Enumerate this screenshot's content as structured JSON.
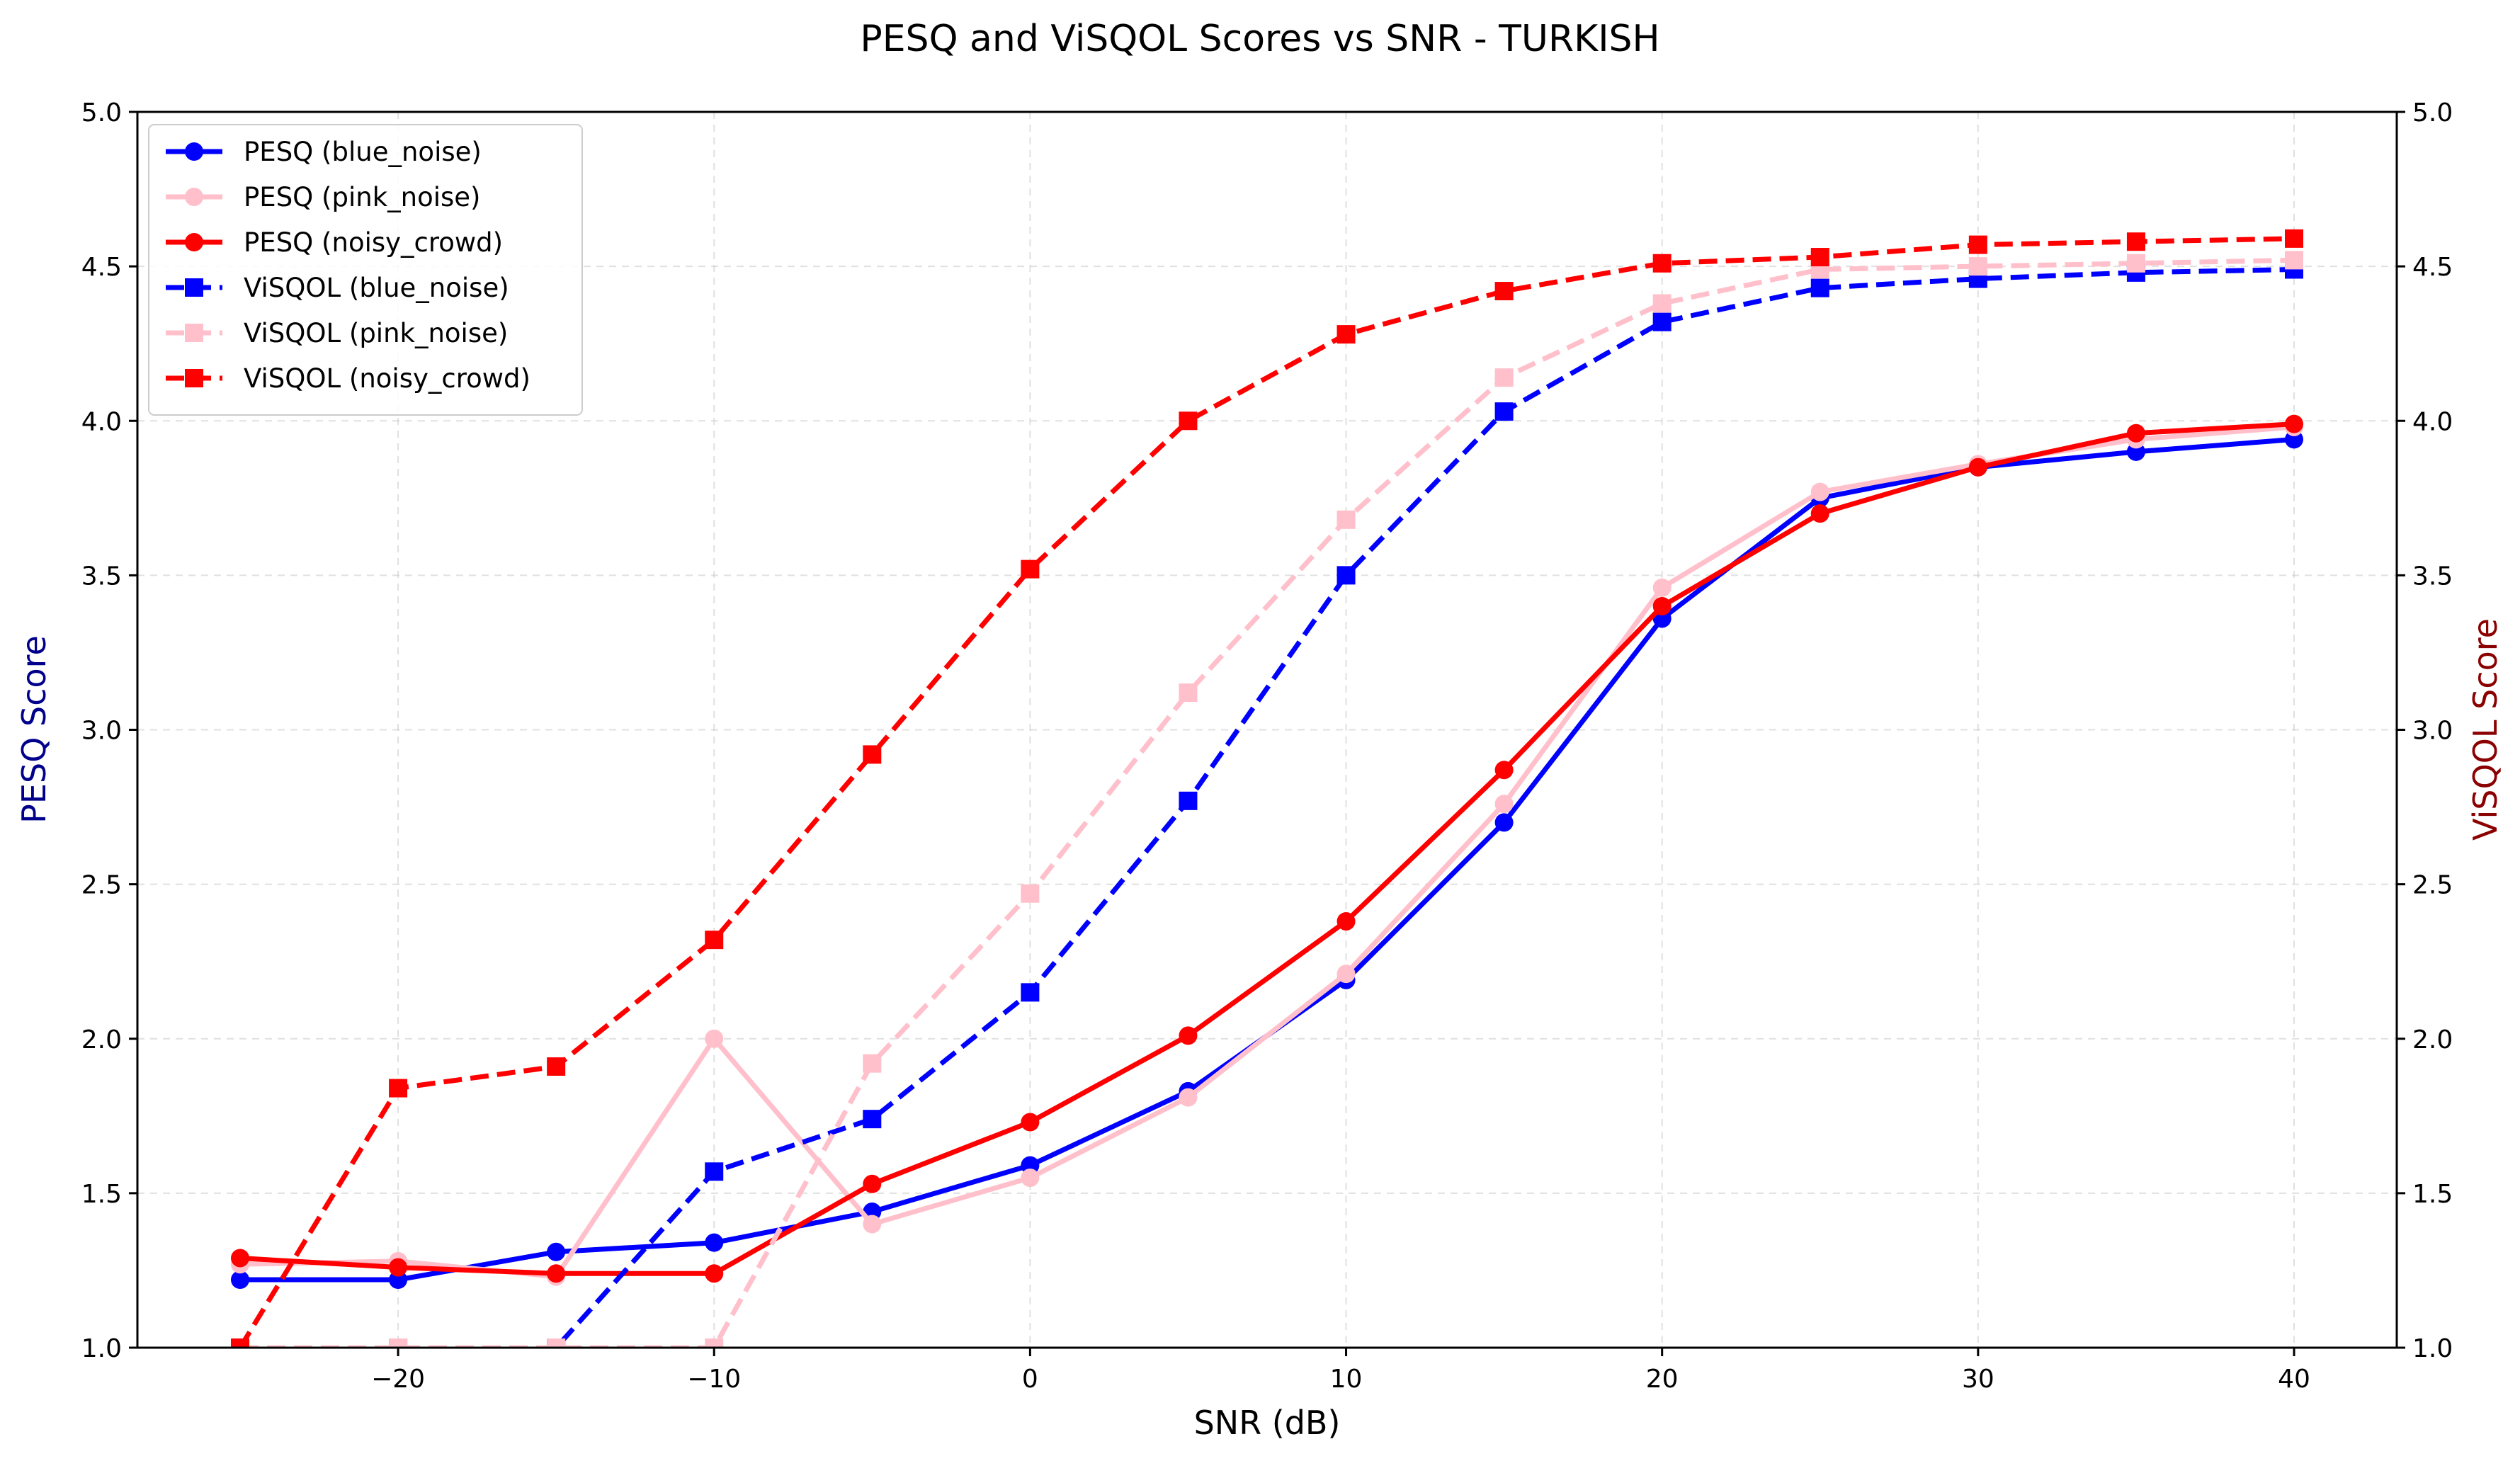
{
  "chart_data": {
    "type": "line",
    "title": "PESQ and ViSQOL Scores vs SNR - TURKISH",
    "xlabel": "SNR (dB)",
    "ylabel_left": "PESQ Score",
    "ylabel_right": "ViSQOL Score",
    "ylabel_left_color": "#00008b",
    "ylabel_right_color": "#8b0000",
    "xlim": [
      -28.25,
      43.25
    ],
    "ylim": [
      1.0,
      5.0
    ],
    "x_ticks": [
      -20,
      -10,
      0,
      10,
      20,
      30,
      40
    ],
    "x_tick_labels": [
      "−20",
      "−10",
      "0",
      "10",
      "20",
      "30",
      "40"
    ],
    "y_ticks": [
      1.0,
      1.5,
      2.0,
      2.5,
      3.0,
      3.5,
      4.0,
      4.5,
      5.0
    ],
    "y_tick_labels": [
      "1.0",
      "1.5",
      "2.0",
      "2.5",
      "3.0",
      "3.5",
      "4.0",
      "4.5",
      "5.0"
    ],
    "grid": true,
    "legend_position": "top-left",
    "x": [
      -25,
      -20,
      -15,
      -10,
      -5,
      0,
      5,
      10,
      15,
      20,
      25,
      30,
      35,
      40
    ],
    "series": [
      {
        "name": "PESQ (blue_noise)",
        "color": "#0000ff",
        "style": "solid",
        "marker": "circle",
        "values": [
          1.22,
          1.22,
          1.31,
          1.34,
          1.44,
          1.59,
          1.83,
          2.19,
          2.7,
          3.36,
          3.75,
          3.85,
          3.9,
          3.94
        ]
      },
      {
        "name": "PESQ (pink_noise)",
        "color": "#ffc0cb",
        "style": "solid",
        "marker": "circle",
        "values": [
          1.27,
          1.28,
          1.23,
          2.0,
          1.4,
          1.55,
          1.81,
          2.21,
          2.76,
          3.46,
          3.77,
          3.86,
          3.94,
          3.98
        ]
      },
      {
        "name": "PESQ (noisy_crowd)",
        "color": "#ff0000",
        "style": "solid",
        "marker": "circle",
        "values": [
          1.29,
          1.26,
          1.24,
          1.24,
          1.53,
          1.73,
          2.01,
          2.38,
          2.87,
          3.4,
          3.7,
          3.85,
          3.96,
          3.99
        ]
      },
      {
        "name": "ViSQOL (blue_noise)",
        "color": "#0000ff",
        "style": "dashed",
        "marker": "square",
        "values": [
          1.0,
          1.0,
          1.0,
          1.57,
          1.74,
          2.15,
          2.77,
          3.5,
          4.03,
          4.32,
          4.43,
          4.46,
          4.48,
          4.49
        ]
      },
      {
        "name": "ViSQOL (pink_noise)",
        "color": "#ffc0cb",
        "style": "dashed",
        "marker": "square",
        "values": [
          1.0,
          1.0,
          1.0,
          1.0,
          1.92,
          2.47,
          3.12,
          3.68,
          4.14,
          4.38,
          4.49,
          4.5,
          4.51,
          4.52
        ]
      },
      {
        "name": "ViSQOL (noisy_crowd)",
        "color": "#ff0000",
        "style": "dashed",
        "marker": "square",
        "values": [
          1.0,
          1.84,
          1.91,
          2.32,
          2.92,
          3.52,
          4.0,
          4.28,
          4.42,
          4.51,
          4.53,
          4.57,
          4.58,
          4.59
        ]
      }
    ]
  }
}
